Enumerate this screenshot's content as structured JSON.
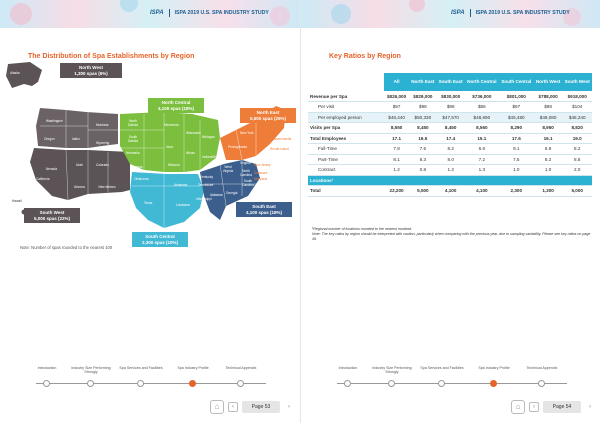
{
  "header": {
    "brand": "ISPA",
    "study_title": "ISPA 2019 U.S. SPA INDUSTRY STUDY"
  },
  "left": {
    "title": "The Distribution of Spa Establishments by Region",
    "regions": [
      {
        "id": "north-west",
        "name": "North West",
        "value": "1,300 spas (6%)",
        "color": "#5b5356"
      },
      {
        "id": "north-central",
        "name": "North Central",
        "value": "4,100 spas (18%)",
        "color": "#7cbf3e"
      },
      {
        "id": "north-east",
        "name": "North East",
        "value": "5,500 spas (25%)",
        "color": "#ef7d3a"
      },
      {
        "id": "south-west",
        "name": "South West",
        "value": "5,000 spas (22%)",
        "color": "#5b5356"
      },
      {
        "id": "south-central",
        "name": "South Central",
        "value": "2,300 spas (10%)",
        "color": "#41b8d4"
      },
      {
        "id": "south-east",
        "name": "South East",
        "value": "4,100 spas (18%)",
        "color": "#3b5e8c"
      }
    ],
    "states": {
      "alaska": "Alaska",
      "hawaii": "Hawaii",
      "washington": "Washington",
      "oregon": "Oregon",
      "idaho": "Idaho",
      "montana": "Montana",
      "wyoming": "Wyoming",
      "nevada": "Nevada",
      "utah": "Utah",
      "colorado": "Colorado",
      "california": "California",
      "arizona": "Arizona",
      "new_mexico": "New Mexico",
      "north_dakota": "North Dakota",
      "south_dakota": "South Dakota",
      "nebraska": "Nebraska",
      "kansas": "Kansas",
      "minnesota": "Minnesota",
      "iowa": "Iowa",
      "missouri": "Missouri",
      "wisconsin": "Wisconsin",
      "illinois": "Illinois",
      "michigan": "Michigan",
      "indiana": "Indiana",
      "ohio": "Ohio",
      "oklahoma": "Oklahoma",
      "texas": "Texas",
      "arkansas": "Arkansas",
      "louisiana": "Louisiana",
      "maine": "Maine",
      "new_york": "New York",
      "pennsylvania": "Pennsylvania",
      "massachusetts": "Massachusetts",
      "rhode_island": "Rhode Island",
      "new_jersey": "New Jersey",
      "delaware": "Delaware",
      "maryland": "Maryland",
      "kentucky": "Kentucky",
      "tennessee": "Tennessee",
      "mississippi": "Mississippi",
      "alabama": "Alabama",
      "georgia": "Georgia",
      "florida": "Florida",
      "south_carolina": "South Carolina",
      "north_carolina": "North Carolina",
      "virginia": "Virginia",
      "west_virginia": "West Virginia"
    },
    "note": "Note: Number of spas rounded to the nearest 100"
  },
  "right": {
    "title": "Key Ratios by Region",
    "columns": [
      "All",
      "North East",
      "South East",
      "North Central",
      "South Central",
      "North West",
      "South West"
    ],
    "rows": [
      {
        "label": "Revenue per Spa",
        "values": [
          "$826,000",
          "$829,000",
          "$830,000",
          "$736,000",
          "$801,000",
          "$788,000",
          "$918,000"
        ],
        "kind": "main"
      },
      {
        "label": "Per visit",
        "values": [
          "$97",
          "$98",
          "$98",
          "$86",
          "$97",
          "$88",
          "$104"
        ],
        "kind": "sub"
      },
      {
        "label": "Per employed person",
        "values": [
          "$48,440",
          "$50,330",
          "$47,570",
          "$48,690",
          "$45,480",
          "$49,080",
          "$48,240"
        ],
        "kind": "sub shade"
      },
      {
        "label": "Visits per Spa",
        "values": [
          "8,550",
          "8,450",
          "8,450",
          "8,560",
          "8,290",
          "8,950",
          "8,820"
        ],
        "kind": "main"
      },
      {
        "label": "Total Employees",
        "values": [
          "17.1",
          "16.5",
          "17.4",
          "15.1",
          "17.6",
          "16.1",
          "19.0"
        ],
        "kind": "main"
      },
      {
        "label": "Full-Time",
        "values": [
          "7.8",
          "7.5",
          "8.2",
          "6.6",
          "9.1",
          "6.9",
          "8.2"
        ],
        "kind": "sub"
      },
      {
        "label": "Part-Time",
        "values": [
          "8.1",
          "8.3",
          "8.0",
          "7.2",
          "7.5",
          "8.2",
          "8.8"
        ],
        "kind": "sub"
      },
      {
        "label": "Contract",
        "values": [
          "1.2",
          "0.8",
          "1.2",
          "1.3",
          "1.0",
          "1.0",
          "2.0"
        ],
        "kind": "sub"
      }
    ],
    "locations_label": "Locations¹",
    "total": {
      "label": "Total",
      "values": [
        "22,200",
        "5,500",
        "4,100",
        "4,100",
        "2,300",
        "1,300",
        "5,000"
      ]
    },
    "footnote_1": "¹Regional number of locations rounded to the nearest hundred.",
    "footnote_2": "Note: The key ratios by region should be interpreted with caution, particularly when comparing with the previous year, due to sampling variability. Please see key ratios on page 49."
  },
  "nav": {
    "items": [
      "Introduction",
      "Industry Size Performing Strongly",
      "Spa Services and Facilities",
      "Spa Industry Profile",
      "Technical Appendix"
    ],
    "active_index": 3
  },
  "pager_left": {
    "label": "Page 53"
  },
  "pager_right": {
    "label": "Page 54"
  }
}
